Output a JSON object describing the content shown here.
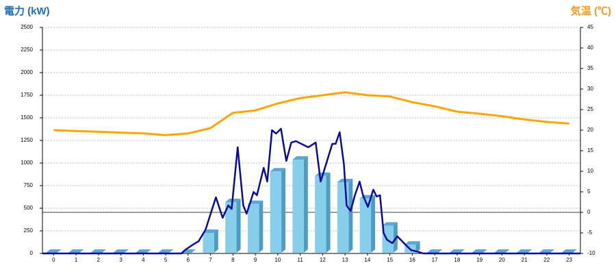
{
  "chart_data": {
    "type": "bar",
    "y_title": "電力 (kW)",
    "y2_title": "気温 (℃)",
    "categories": [
      "0",
      "1",
      "2",
      "3",
      "4",
      "5",
      "6",
      "7",
      "8",
      "9",
      "10",
      "11",
      "12",
      "13",
      "14",
      "15",
      "16",
      "17",
      "18",
      "19",
      "20",
      "21",
      "22",
      "23"
    ],
    "ylim": [
      0,
      2500
    ],
    "yticks": [
      0,
      250,
      500,
      750,
      1000,
      1250,
      1500,
      1750,
      2000,
      2250,
      2500
    ],
    "y2lim": [
      -10,
      45
    ],
    "y2ticks": [
      -10,
      -5,
      0,
      5,
      10,
      15,
      20,
      25,
      30,
      35,
      40,
      45
    ],
    "grid": true,
    "series": [
      {
        "type": "bar",
        "color": "#87ceeb",
        "values": [
          0,
          0,
          0,
          0,
          0,
          0,
          0,
          220,
          560,
          540,
          900,
          1030,
          850,
          780,
          600,
          300,
          90,
          0,
          0,
          0,
          0,
          0,
          0,
          0
        ]
      },
      {
        "type": "line",
        "color": "#0a0a96",
        "x": [
          -0.5,
          5.71,
          5.86,
          6.17,
          6.47,
          6.78,
          7.24,
          7.54,
          7.79,
          7.94,
          8.21,
          8.46,
          8.61,
          8.92,
          9.07,
          9.37,
          9.53,
          9.74,
          9.92,
          10.14,
          10.38,
          10.6,
          10.81,
          11.05,
          11.36,
          11.69,
          11.91,
          12.15,
          12.43,
          12.58,
          12.76,
          12.95,
          13.07,
          13.25,
          13.44,
          13.65,
          13.8,
          14.02,
          14.26,
          14.41,
          14.56,
          14.72,
          14.87,
          15.11,
          15.33,
          15.63,
          15.94,
          16.31,
          16.49,
          23.5
        ],
        "values": [
          0,
          0,
          38,
          90,
          136,
          265,
          621,
          394,
          530,
          492,
          1174,
          530,
          440,
          680,
          644,
          947,
          795,
          1364,
          1326,
          1379,
          1023,
          1227,
          1242,
          1212,
          1174,
          1227,
          795,
          985,
          1212,
          1212,
          1341,
          985,
          530,
          470,
          644,
          795,
          644,
          515,
          705,
          629,
          644,
          227,
          152,
          114,
          190,
          114,
          38,
          15,
          0,
          0
        ]
      },
      {
        "type": "line",
        "axis": "y2",
        "color": "#ffa500",
        "values": [
          20,
          19.8,
          19.6,
          19.4,
          19.2,
          18.8,
          19.2,
          20.5,
          24.2,
          24.8,
          26.5,
          27.8,
          28.5,
          29.2,
          28.5,
          28.2,
          26.8,
          25.8,
          24.5,
          24,
          23.4,
          22.6,
          22,
          21.6
        ]
      }
    ]
  }
}
